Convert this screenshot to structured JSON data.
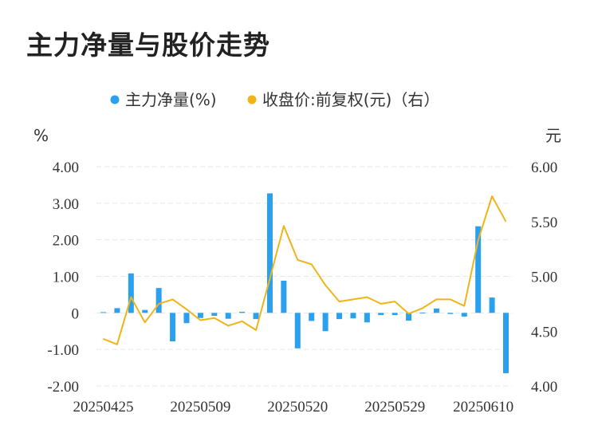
{
  "title": "主力净量与股价走势",
  "colors": {
    "bar": "#2aa0ee",
    "line": "#f0b419",
    "grid": "#e6e6e6"
  },
  "chart_data": {
    "type": "bar",
    "title": "主力净量与股价走势",
    "legend": {
      "position": "top"
    },
    "left_unit": "%",
    "right_unit": "元",
    "left_ticks": [
      "4.00",
      "3.00",
      "2.00",
      "1.00",
      "0",
      "-1.00",
      "-2.00"
    ],
    "right_ticks": [
      "6.00",
      "5.50",
      "5.00",
      "4.50",
      "4.00"
    ],
    "ylim_left": [
      -2,
      4
    ],
    "ylim_right": [
      4,
      6
    ],
    "grid": true,
    "x_tick_labels": [
      "20250425",
      "20250509",
      "20250520",
      "20250529",
      "20250610"
    ],
    "x_tick_index": [
      0,
      7,
      14,
      21,
      28
    ],
    "series": [
      {
        "name": "主力净量(%)",
        "type": "bar",
        "axis": "left",
        "values": [
          0.02,
          0.13,
          1.08,
          0.08,
          0.68,
          -0.78,
          -0.28,
          -0.14,
          -0.08,
          -0.16,
          0.03,
          -0.17,
          3.27,
          0.88,
          -0.97,
          -0.22,
          -0.5,
          -0.17,
          -0.15,
          -0.26,
          -0.06,
          -0.06,
          -0.21,
          0.01,
          0.12,
          -0.03,
          -0.1,
          2.37,
          0.42,
          -1.65
        ]
      },
      {
        "name": "收盘价:前复权(元)（右）",
        "type": "line",
        "axis": "right",
        "values": [
          4.43,
          4.38,
          4.81,
          4.58,
          4.75,
          4.79,
          4.7,
          4.6,
          4.62,
          4.55,
          4.59,
          4.51,
          4.98,
          5.46,
          5.15,
          5.11,
          4.92,
          4.77,
          4.79,
          4.81,
          4.75,
          4.77,
          4.66,
          4.71,
          4.79,
          4.79,
          4.73,
          5.33,
          5.73,
          5.5
        ]
      }
    ]
  }
}
